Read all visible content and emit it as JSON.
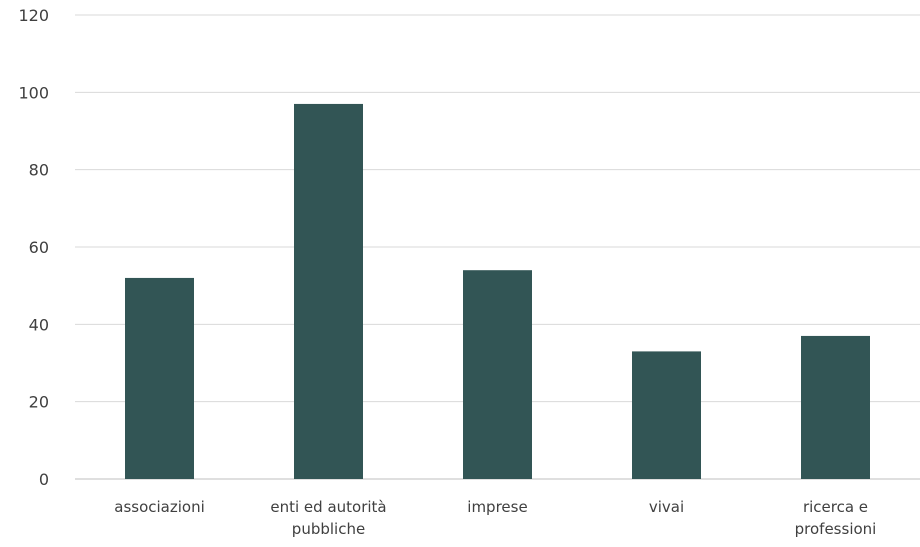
{
  "chart_data": {
    "type": "bar",
    "categories": [
      "associazioni",
      "enti ed autorità pubbliche",
      "imprese",
      "vivai",
      "ricerca e professioni"
    ],
    "category_lines": [
      [
        "associazioni"
      ],
      [
        "enti ed autorità",
        "pubbliche"
      ],
      [
        "imprese"
      ],
      [
        "vivai"
      ],
      [
        "ricerca e",
        "professioni"
      ]
    ],
    "values": [
      52,
      97,
      54,
      33,
      37
    ],
    "ylim": [
      0,
      120
    ],
    "yticks": [
      "0",
      "20",
      "40",
      "60",
      "80",
      "100",
      "120"
    ],
    "title": "",
    "xlabel": "",
    "ylabel": "",
    "grid": true,
    "bar_color": "#325555"
  }
}
